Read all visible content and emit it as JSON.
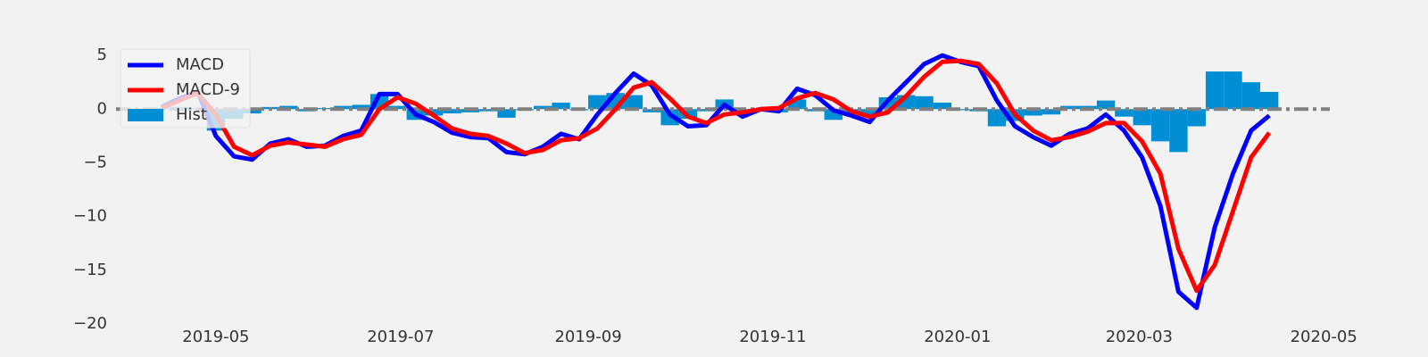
{
  "chart_data": {
    "type": "line",
    "x": [
      "2019-04-13",
      "2019-04-19",
      "2019-04-25",
      "2019-05-01",
      "2019-05-07",
      "2019-05-13",
      "2019-05-19",
      "2019-05-25",
      "2019-05-31",
      "2019-06-06",
      "2019-06-12",
      "2019-06-18",
      "2019-06-24",
      "2019-06-30",
      "2019-07-06",
      "2019-07-12",
      "2019-07-18",
      "2019-07-24",
      "2019-07-30",
      "2019-08-05",
      "2019-08-11",
      "2019-08-17",
      "2019-08-23",
      "2019-08-29",
      "2019-09-04",
      "2019-09-10",
      "2019-09-16",
      "2019-09-22",
      "2019-09-28",
      "2019-10-04",
      "2019-10-10",
      "2019-10-16",
      "2019-10-22",
      "2019-10-28",
      "2019-11-03",
      "2019-11-09",
      "2019-11-15",
      "2019-11-21",
      "2019-11-27",
      "2019-12-03",
      "2019-12-09",
      "2019-12-15",
      "2019-12-21",
      "2019-12-27",
      "2020-01-02",
      "2020-01-08",
      "2020-01-14",
      "2020-01-20",
      "2020-01-26",
      "2020-02-01",
      "2020-02-07",
      "2020-02-13",
      "2020-02-19",
      "2020-02-25",
      "2020-03-02",
      "2020-03-08",
      "2020-03-14",
      "2020-03-20",
      "2020-03-26",
      "2020-04-01",
      "2020-04-07",
      "2020-04-13"
    ],
    "series": [
      {
        "name": "MACD",
        "type": "line",
        "color": "#0000ff",
        "values": [
          0.2,
          1.0,
          1.6,
          -2.5,
          -4.4,
          -4.7,
          -3.2,
          -2.8,
          -3.5,
          -3.4,
          -2.5,
          -2.0,
          1.4,
          1.4,
          -0.5,
          -1.2,
          -2.2,
          -2.6,
          -2.7,
          -4.0,
          -4.2,
          -3.5,
          -2.3,
          -2.8,
          -0.5,
          1.5,
          3.3,
          2.2,
          -0.5,
          -1.6,
          -1.5,
          0.4,
          -0.7,
          0.0,
          -0.2,
          1.9,
          1.3,
          -0.1,
          -0.6,
          -1.2,
          0.8,
          2.5,
          4.2,
          5.0,
          4.4,
          4.0,
          0.8,
          -1.6,
          -2.6,
          -3.4,
          -2.3,
          -1.8,
          -0.5,
          -2.0,
          -4.5,
          -9.0,
          -17.0,
          -18.5,
          -11.0,
          -6.0,
          -2.0,
          -0.6
        ]
      },
      {
        "name": "MACD-9",
        "type": "line",
        "color": "#ff0000",
        "values": [
          0.1,
          0.8,
          1.5,
          -0.5,
          -3.5,
          -4.3,
          -3.4,
          -3.1,
          -3.3,
          -3.5,
          -2.8,
          -2.4,
          0.0,
          1.1,
          0.5,
          -0.6,
          -1.8,
          -2.3,
          -2.5,
          -3.2,
          -4.1,
          -3.8,
          -2.9,
          -2.7,
          -1.8,
          0.0,
          2.0,
          2.5,
          1.0,
          -0.7,
          -1.3,
          -0.5,
          -0.3,
          0.0,
          0.1,
          1.0,
          1.5,
          0.9,
          -0.2,
          -0.7,
          -0.3,
          1.2,
          3.0,
          4.4,
          4.5,
          4.2,
          2.4,
          -0.5,
          -2.0,
          -2.9,
          -2.6,
          -2.1,
          -1.3,
          -1.3,
          -3.0,
          -6.0,
          -13.0,
          -16.9,
          -14.5,
          -9.5,
          -4.5,
          -2.2
        ]
      },
      {
        "name": "Hist",
        "type": "bar",
        "color": "#008fd5",
        "values": [
          0.1,
          0.2,
          0.1,
          -2.0,
          -0.9,
          -0.4,
          0.2,
          0.3,
          -0.2,
          0.1,
          0.3,
          0.4,
          1.4,
          0.3,
          -1.0,
          -0.6,
          -0.4,
          -0.3,
          -0.2,
          -0.8,
          -0.1,
          0.3,
          0.6,
          -0.1,
          1.3,
          1.5,
          1.3,
          -0.3,
          -1.5,
          -0.9,
          -0.2,
          0.9,
          -0.4,
          0.0,
          -0.3,
          0.9,
          -0.2,
          -1.0,
          -0.4,
          -0.5,
          1.1,
          1.3,
          1.2,
          0.6,
          -0.1,
          -0.2,
          -1.6,
          -1.1,
          -0.6,
          -0.5,
          0.3,
          0.3,
          0.8,
          -0.7,
          -1.5,
          -3.0,
          -4.0,
          -1.6,
          3.5,
          3.5,
          2.5,
          1.6
        ]
      }
    ],
    "hline": {
      "value": 0,
      "color": "#808080"
    },
    "xlim": [
      "2019-03-29",
      "2020-05-03"
    ],
    "xticks": [
      "2019-05",
      "2019-07",
      "2019-09",
      "2019-11",
      "2020-01",
      "2020-03",
      "2020-05"
    ],
    "ylim": [
      -20,
      7
    ],
    "yticks": [
      {
        "value": 5,
        "label": "5"
      },
      0,
      {
        "value": -5,
        "label": "−5"
      },
      {
        "value": -10,
        "label": "−10"
      },
      {
        "value": -15,
        "label": "−15"
      },
      {
        "value": -20,
        "label": "−20"
      }
    ],
    "legend": "upper left"
  }
}
